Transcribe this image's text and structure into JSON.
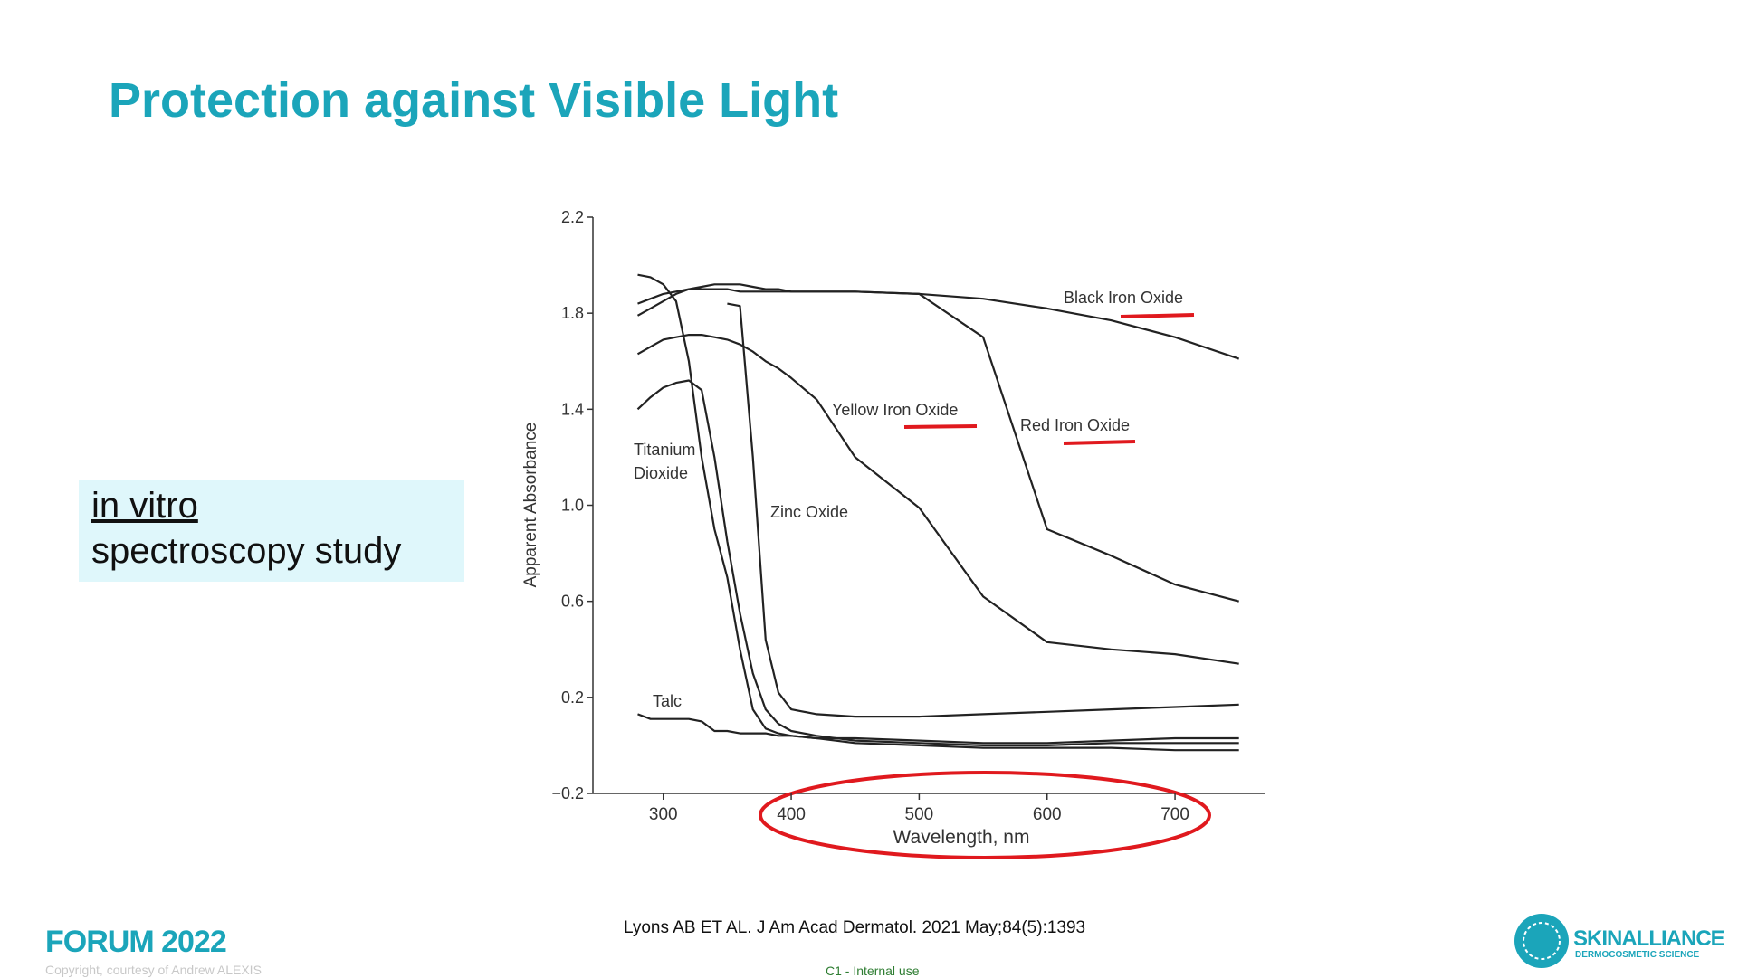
{
  "title": "Protection against Visible Light",
  "sidebox": {
    "line1": "in vitro",
    "line2": "spectroscopy study"
  },
  "citation": "Lyons AB ET AL. J Am Acad Dermatol. 2021 May;84(5):1393",
  "internal": "C1 - Internal use",
  "footer": {
    "event": "FORUM 2022",
    "copyright": "Copyright, courtesy of Andrew ALEXIS",
    "logo": "SKINALLIANCE",
    "logo_sub": "DERMOCOSMETIC SCIENCE"
  },
  "chart_data": {
    "type": "line",
    "xlabel": "Wavelength, nm",
    "ylabel": "Apparent Absorbance",
    "xlim": [
      245,
      770
    ],
    "xticks": [
      300,
      400,
      500,
      600,
      700
    ],
    "ylim": [
      -0.2,
      2.2
    ],
    "yticks": [
      {
        "value": -0.2,
        "label": "−0.2"
      },
      0.2,
      0.6,
      {
        "value": 1,
        "label": "1.0"
      },
      1.4,
      1.8,
      2.2
    ],
    "x": [
      280,
      290,
      300,
      310,
      320,
      330,
      340,
      350,
      360,
      370,
      380,
      390,
      400,
      420,
      450,
      500,
      550,
      600,
      650,
      700,
      750
    ],
    "series": [
      {
        "name": "Black Iron Oxide",
        "color": "#222222",
        "values": [
          1.84,
          1.86,
          1.88,
          1.89,
          1.9,
          1.9,
          1.9,
          1.9,
          1.89,
          1.89,
          1.89,
          1.89,
          1.89,
          1.89,
          1.89,
          1.88,
          1.86,
          1.82,
          1.77,
          1.7,
          1.61
        ]
      },
      {
        "name": "Yellow Iron Oxide",
        "color": "#222222",
        "values": [
          1.63,
          1.66,
          1.69,
          1.7,
          1.71,
          1.71,
          1.7,
          1.69,
          1.67,
          1.64,
          1.6,
          1.57,
          1.53,
          1.44,
          1.2,
          0.99,
          0.62,
          0.43,
          0.4,
          0.38,
          0.34
        ]
      },
      {
        "name": "Red Iron Oxide",
        "color": "#222222",
        "values": [
          1.79,
          1.82,
          1.85,
          1.88,
          1.9,
          1.91,
          1.92,
          1.92,
          1.92,
          1.91,
          1.9,
          1.9,
          1.89,
          1.89,
          1.89,
          1.88,
          1.7,
          0.9,
          0.79,
          0.67,
          0.6
        ]
      },
      {
        "name": "Titanium Dioxide",
        "color": "#222222",
        "values": [
          1.4,
          1.45,
          1.49,
          1.51,
          1.52,
          1.48,
          1.2,
          0.85,
          0.55,
          0.3,
          0.15,
          0.09,
          0.06,
          0.04,
          0.02,
          0.01,
          0,
          0,
          0.01,
          0.01,
          0.01
        ]
      },
      {
        "name": "Zinc Oxide",
        "color": "#222222",
        "values": [
          null,
          null,
          null,
          null,
          null,
          null,
          null,
          1.84,
          1.83,
          1.2,
          0.44,
          0.22,
          0.15,
          0.13,
          0.12,
          0.12,
          0.13,
          0.14,
          0.15,
          0.16,
          0.17
        ]
      },
      {
        "name": "Talc",
        "color": "#222222",
        "values": [
          0.13,
          0.11,
          0.11,
          0.11,
          0.11,
          0.1,
          0.06,
          0.06,
          0.05,
          0.05,
          0.05,
          0.04,
          0.04,
          0.03,
          0.03,
          0.02,
          0.01,
          0.01,
          0.02,
          0.03,
          0.03
        ]
      },
      {
        "color": "#222222",
        "values": [
          1.96,
          1.95,
          1.92,
          1.85,
          1.6,
          1.2,
          0.9,
          0.7,
          0.4,
          0.15,
          0.07,
          0.05,
          0.04,
          0.03,
          0.01,
          0,
          -0.01,
          -0.01,
          -0.01,
          -0.02,
          -0.02
        ]
      }
    ]
  }
}
